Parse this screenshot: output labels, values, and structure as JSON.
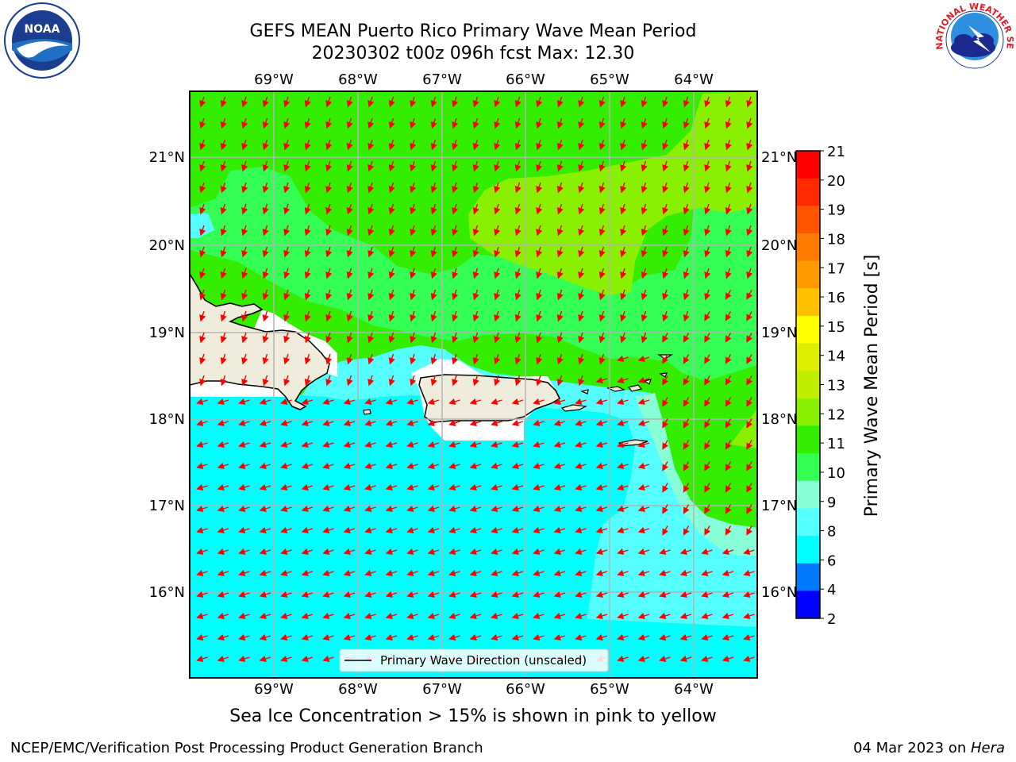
{
  "header": {
    "title_line1": "GEFS MEAN Puerto Rico Primary Wave Mean Period",
    "title_line2": "20230302 t00z 096h fcst   Max: 12.30"
  },
  "map": {
    "lon_labels": [
      "69°W",
      "68°W",
      "67°W",
      "66°W",
      "65°W",
      "64°W"
    ],
    "lat_labels": [
      "21°N",
      "20°N",
      "19°N",
      "18°N",
      "17°N",
      "16°N"
    ],
    "legend_label": "Primary Wave Direction (unscaled)",
    "land_color": "#efecdc",
    "arrow_color": "#ff0000"
  },
  "colorbar": {
    "label": "Primary Wave Mean Period [s]",
    "ticks": [
      "21",
      "20",
      "19",
      "18",
      "17",
      "16",
      "15",
      "14",
      "13",
      "12",
      "11",
      "10",
      "9",
      "8",
      "6",
      "4",
      "2"
    ],
    "colors_top_to_bottom": [
      "#ff0000",
      "#ff2a00",
      "#ff5500",
      "#ff7a00",
      "#ff9900",
      "#ffc000",
      "#ffff00",
      "#ddee00",
      "#c0ee00",
      "#88f000",
      "#33ee00",
      "#33ff55",
      "#88ffd6",
      "#55ffff",
      "#00ffff",
      "#0077ff",
      "#0000ff"
    ]
  },
  "caption": "Sea Ice Concentration > 15% is shown in pink to yellow",
  "footer": {
    "left": "NCEP/EMC/Verification Post Processing Product Generation Branch",
    "right_date": "04 Mar 2023 on ",
    "right_host": "Hera"
  },
  "logos": {
    "noaa": "NOAA",
    "nws": "NATIONAL WEATHER SERVICE"
  }
}
